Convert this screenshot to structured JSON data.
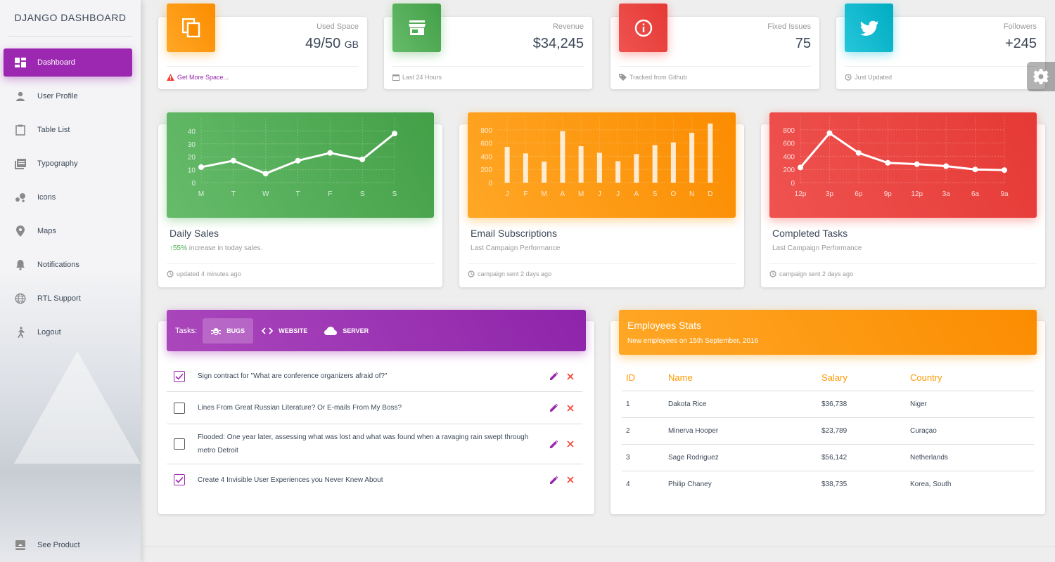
{
  "brand": "DJANGO DASHBOARD",
  "sidebar": {
    "items": [
      {
        "label": "Dashboard",
        "icon": "dashboard-icon"
      },
      {
        "label": "User Profile",
        "icon": "person-icon"
      },
      {
        "label": "Table List",
        "icon": "clipboard-icon"
      },
      {
        "label": "Typography",
        "icon": "library-books-icon"
      },
      {
        "label": "Icons",
        "icon": "bubble-chart-icon"
      },
      {
        "label": "Maps",
        "icon": "location-pin-icon"
      },
      {
        "label": "Notifications",
        "icon": "bell-icon"
      },
      {
        "label": "RTL Support",
        "icon": "globe-icon"
      },
      {
        "label": "Logout",
        "icon": "running-person-icon"
      }
    ],
    "bottom": {
      "label": "See Product",
      "icon": "unarchive-icon"
    }
  },
  "stats": [
    {
      "category": "Used Space",
      "value": "49/50",
      "unit": "GB",
      "footer": "Get More Space...",
      "icon": "copy-icon",
      "color": "#fb8c00"
    },
    {
      "category": "Revenue",
      "value": "$34,245",
      "unit": "",
      "footer": "Last 24 Hours",
      "icon": "store-icon",
      "color": "#43a047"
    },
    {
      "category": "Fixed Issues",
      "value": "75",
      "unit": "",
      "footer": "Tracked from Github",
      "icon": "info-icon",
      "color": "#e53935"
    },
    {
      "category": "Followers",
      "value": "+245",
      "unit": "",
      "footer": "Just Updated",
      "icon": "twitter-icon",
      "color": "#00acc1"
    }
  ],
  "charts": [
    {
      "title": "Daily Sales",
      "sub_percent": "55%",
      "sub_text": " increase in today sales.",
      "footer": "updated 4 minutes ago"
    },
    {
      "title": "Email Subscriptions",
      "sub_percent": "",
      "sub_text": "Last Campaign Performance",
      "footer": "campaign sent 2 days ago"
    },
    {
      "title": "Completed Tasks",
      "sub_percent": "",
      "sub_text": "Last Campaign Performance",
      "footer": "campaign sent 2 days ago"
    }
  ],
  "chart_data": [
    {
      "type": "line",
      "categories": [
        "M",
        "T",
        "W",
        "T",
        "F",
        "S",
        "S"
      ],
      "values": [
        12,
        17,
        7,
        17,
        23,
        18,
        38
      ],
      "yticks": [
        0,
        10,
        20,
        30,
        40
      ],
      "ylim": [
        0,
        50
      ],
      "grid": true
    },
    {
      "type": "bar",
      "categories": [
        "J",
        "F",
        "M",
        "A",
        "M",
        "J",
        "J",
        "A",
        "S",
        "O",
        "N",
        "D"
      ],
      "values": [
        542,
        443,
        320,
        780,
        553,
        453,
        326,
        434,
        568,
        610,
        756,
        895
      ],
      "yticks": [
        0,
        200,
        400,
        600,
        800
      ],
      "ylim": [
        0,
        1000
      ],
      "grid": true
    },
    {
      "type": "line",
      "categories": [
        "12p",
        "3p",
        "6p",
        "9p",
        "12p",
        "3a",
        "6a",
        "9a"
      ],
      "values": [
        230,
        750,
        450,
        300,
        280,
        250,
        200,
        190
      ],
      "yticks": [
        0,
        200,
        400,
        600,
        800
      ],
      "ylim": [
        0,
        1000
      ],
      "grid": true
    }
  ],
  "tasks": {
    "label": "Tasks:",
    "tabs": [
      {
        "label": "BUGS",
        "icon": "bug-icon"
      },
      {
        "label": "WEBSITE",
        "icon": "code-icon"
      },
      {
        "label": "SERVER",
        "icon": "cloud-icon"
      }
    ],
    "items": [
      {
        "text": "Sign contract for \"What are conference organizers afraid of?\"",
        "checked": true
      },
      {
        "text": "Lines From Great Russian Literature? Or E-mails From My Boss?",
        "checked": false
      },
      {
        "text": "Flooded: One year later, assessing what was lost and what was found when a ravaging rain swept through metro Detroit",
        "checked": false
      },
      {
        "text": "Create 4 Invisible User Experiences you Never Knew About",
        "checked": true
      }
    ]
  },
  "employees": {
    "title": "Employees Stats",
    "subtitle": "New employees on 15th September, 2016",
    "columns": [
      "ID",
      "Name",
      "Salary",
      "Country"
    ],
    "rows": [
      [
        "1",
        "Dakota Rice",
        "$36,738",
        "Niger"
      ],
      [
        "2",
        "Minerva Hooper",
        "$23,789",
        "Curaçao"
      ],
      [
        "3",
        "Sage Rodriguez",
        "$56,142",
        "Netherlands"
      ],
      [
        "4",
        "Philip Chaney",
        "$38,735",
        "Korea, South"
      ]
    ]
  },
  "colors": {
    "primary": "#9c27b0",
    "warning": "#ff9800",
    "success": "#4caf50",
    "danger": "#f44336",
    "info": "#00bcd4"
  }
}
